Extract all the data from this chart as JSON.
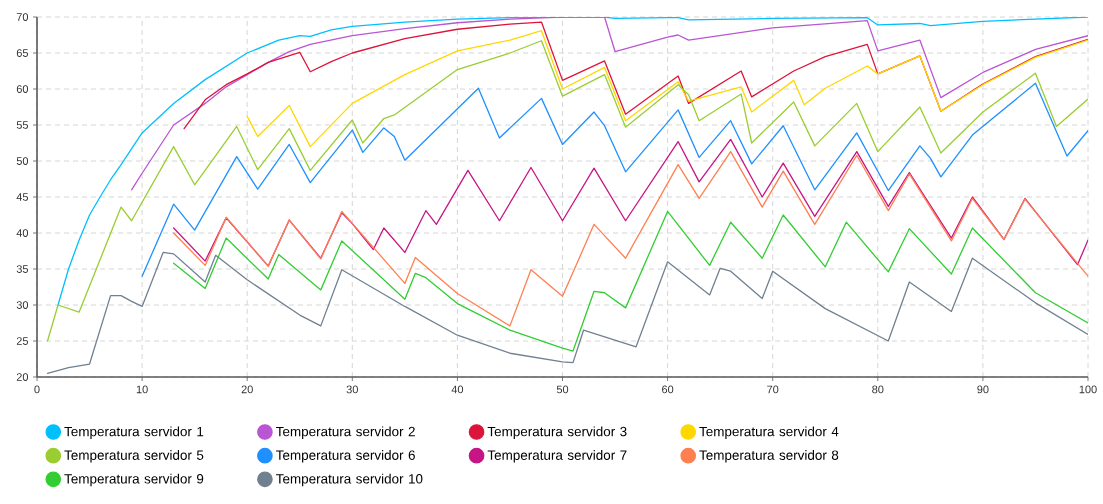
{
  "chart_data": {
    "type": "line",
    "xlim": [
      0,
      100
    ],
    "ylim": [
      20,
      70
    ],
    "xticks": [
      0,
      10,
      20,
      30,
      40,
      50,
      60,
      70,
      80,
      90,
      100
    ],
    "yticks": [
      20,
      25,
      30,
      35,
      40,
      45,
      50,
      55,
      60,
      65,
      70
    ],
    "grid": true,
    "legend": "bottom",
    "marker": "none",
    "line_style": "solid",
    "series": [
      {
        "name": "Temperatura servidor 1",
        "color": "#00bfff",
        "x": [
          2,
          3,
          4,
          5,
          6,
          7,
          8,
          10,
          13,
          16,
          20,
          23,
          25,
          26,
          28,
          30,
          35,
          40,
          45,
          50,
          54,
          55,
          60,
          61,
          62,
          70,
          79,
          80,
          84,
          85,
          90,
          100
        ],
        "values": [
          30,
          35,
          39,
          42.5,
          45,
          47.4,
          49.5,
          53.9,
          58,
          61.3,
          65,
          66.8,
          67.4,
          67.3,
          68.2,
          68.7,
          69.3,
          69.7,
          69.9,
          70,
          70,
          69.8,
          69.9,
          69.9,
          69.6,
          69.8,
          69.9,
          68.9,
          69.1,
          68.8,
          69.4,
          70
        ]
      },
      {
        "name": "Temperatura servidor 2",
        "color": "#ba55d3",
        "x": [
          9,
          10,
          13,
          16,
          18,
          20,
          22,
          24,
          26,
          30,
          35,
          40,
          45,
          50,
          54,
          55,
          60,
          61,
          62,
          70,
          79,
          80,
          84,
          86,
          90,
          95,
          100
        ],
        "values": [
          46,
          48.3,
          55,
          58,
          60.3,
          62,
          63.7,
          65.2,
          66.2,
          67.4,
          68.4,
          69.2,
          69.7,
          70,
          70,
          65.2,
          67.2,
          67.5,
          66.8,
          68.5,
          69.5,
          65.3,
          66.8,
          58.8,
          62.3,
          65.5,
          67.4
        ]
      },
      {
        "name": "Temperatura servidor 3",
        "color": "#dc143c",
        "x": [
          14,
          16,
          18,
          20,
          22,
          25,
          26,
          28,
          30,
          35,
          40,
          45,
          48,
          50,
          54,
          56,
          61,
          62,
          67,
          68,
          72,
          75,
          79,
          80,
          84,
          86,
          90,
          95,
          100
        ],
        "values": [
          54.5,
          58.5,
          60.6,
          62.1,
          63.7,
          65.1,
          62.4,
          63.8,
          65,
          67,
          68.3,
          69,
          69.3,
          61.2,
          63.9,
          56.5,
          61.8,
          58,
          62.5,
          58.9,
          62.5,
          64.5,
          66.2,
          62.1,
          64.6,
          56.9,
          60.7,
          64.5,
          66.9
        ]
      },
      {
        "name": "Temperatura servidor 4",
        "color": "#ffd700",
        "x": [
          20,
          21,
          24,
          26,
          30,
          35,
          40,
          45,
          48,
          50,
          54,
          56,
          61,
          62,
          67,
          68,
          72,
          73,
          75,
          79,
          80,
          84,
          86,
          90,
          95,
          100
        ],
        "values": [
          56.2,
          53.4,
          57.7,
          52,
          58,
          62,
          65.3,
          66.8,
          68.1,
          60,
          63,
          55.6,
          61,
          58.3,
          60.3,
          56.8,
          61.2,
          57.8,
          60.1,
          63.2,
          62.1,
          64.6,
          56.9,
          60.6,
          64.4,
          66.8
        ]
      },
      {
        "name": "Temperatura servidor 5",
        "color": "#9acd32",
        "x": [
          1,
          2,
          4,
          8,
          9,
          13,
          15,
          19,
          21,
          24,
          26,
          30,
          31,
          33,
          34,
          40,
          45,
          48,
          50,
          54,
          56,
          61,
          62,
          63,
          67,
          68,
          72,
          74,
          78,
          80,
          84,
          86,
          90,
          95,
          97,
          100
        ],
        "values": [
          25,
          30,
          29,
          43.6,
          41.7,
          52,
          46.7,
          54.8,
          48.8,
          54.5,
          48.7,
          55.7,
          52.5,
          55.9,
          56.4,
          62.7,
          65,
          66.7,
          59,
          62,
          54.7,
          60.6,
          59.2,
          55.6,
          59.3,
          52.5,
          58.2,
          52.1,
          58,
          51.3,
          57.5,
          51.1,
          56.8,
          62.2,
          54.8,
          58.6
        ]
      },
      {
        "name": "Temperatura servidor 6",
        "color": "#1e90ff",
        "x": [
          10,
          13,
          15,
          19,
          21,
          24,
          26,
          30,
          31,
          33,
          34,
          35,
          42,
          44,
          48,
          50,
          53,
          54,
          56,
          61,
          63,
          66,
          68,
          71,
          74,
          78,
          81,
          84,
          85,
          86,
          89,
          95,
          98,
          100
        ],
        "values": [
          34,
          44,
          40.4,
          50.6,
          46.1,
          52.3,
          47,
          54.3,
          51.2,
          54.6,
          53.4,
          50.1,
          60.1,
          53.2,
          58.7,
          52.3,
          56.8,
          54.9,
          48.5,
          57.1,
          50.5,
          55.6,
          49.6,
          54.9,
          46,
          53.9,
          45.9,
          52.1,
          50.4,
          47.8,
          53.6,
          60.8,
          50.7,
          54.2
        ]
      },
      {
        "name": "Temperatura servidor 7",
        "color": "#c71585",
        "x": [
          13,
          16,
          18,
          22,
          24,
          27,
          29,
          30,
          32,
          33,
          35,
          37,
          38,
          41,
          44,
          47,
          50,
          53,
          56,
          61,
          63,
          66,
          69,
          71,
          74,
          78,
          81,
          83,
          87,
          89,
          92,
          94,
          99,
          100
        ],
        "values": [
          40.7,
          36.1,
          42.1,
          35.4,
          41.8,
          36.5,
          42.8,
          41.3,
          37.7,
          40.7,
          37.3,
          43.1,
          41.2,
          48.7,
          41.7,
          49.1,
          41.7,
          49,
          41.7,
          52.7,
          47.1,
          53,
          45,
          49.7,
          42.3,
          51.3,
          43.7,
          48.4,
          39.3,
          45,
          39.1,
          44.8,
          35.6,
          39
        ]
      },
      {
        "name": "Temperatura servidor 8",
        "color": "#ff7f50",
        "x": [
          13,
          16,
          18,
          22,
          24,
          27,
          29,
          35,
          36,
          40,
          45,
          47,
          50,
          53,
          56,
          61,
          63,
          66,
          69,
          71,
          74,
          78,
          81,
          83,
          87,
          89,
          92,
          94,
          100
        ],
        "values": [
          40,
          35.5,
          42.2,
          35.4,
          41.8,
          36.4,
          43,
          33,
          36.6,
          31.6,
          27.1,
          34.9,
          31.2,
          41.2,
          36.5,
          49.5,
          44.8,
          51.3,
          43.6,
          48.6,
          41.2,
          50.8,
          43.1,
          48.2,
          38.9,
          44.8,
          39.1,
          44.7,
          34
        ]
      },
      {
        "name": "Temperatura servidor 9",
        "color": "#32cd32",
        "x": [
          13,
          16,
          18,
          22,
          23,
          27,
          29,
          35,
          36,
          37,
          40,
          45,
          50,
          51,
          53,
          54,
          56,
          60,
          64,
          66,
          69,
          71,
          75,
          77,
          81,
          83,
          87,
          89,
          95,
          100
        ],
        "values": [
          35.8,
          32.3,
          39.3,
          33.6,
          37,
          32.1,
          38.9,
          30.8,
          34.4,
          33.8,
          30.2,
          26.5,
          24,
          23.6,
          31.9,
          31.7,
          29.6,
          43,
          35.5,
          41.5,
          36.5,
          42.5,
          35.3,
          41.5,
          34.6,
          40.6,
          34.3,
          40.7,
          31.7,
          27.5
        ]
      },
      {
        "name": "Temperatura servidor 10",
        "color": "#708090",
        "x": [
          1,
          3,
          5,
          7,
          8,
          9,
          10,
          12,
          13,
          16,
          17,
          20,
          25,
          27,
          29,
          35,
          40,
          45,
          50,
          51,
          52,
          57,
          60,
          64,
          65,
          66,
          69,
          70,
          75,
          81,
          83,
          87,
          89,
          95,
          100
        ],
        "values": [
          20.5,
          21.3,
          21.8,
          31.3,
          31.3,
          30.5,
          29.8,
          37.3,
          37.1,
          33.2,
          36.9,
          33.5,
          28.6,
          27.1,
          34.9,
          29.8,
          25.8,
          23.3,
          22.1,
          22,
          26.5,
          24.2,
          36,
          31.4,
          35.1,
          34.7,
          30.9,
          34.7,
          29.5,
          25,
          33.2,
          29.1,
          36.5,
          30.3,
          25.9
        ]
      }
    ]
  }
}
